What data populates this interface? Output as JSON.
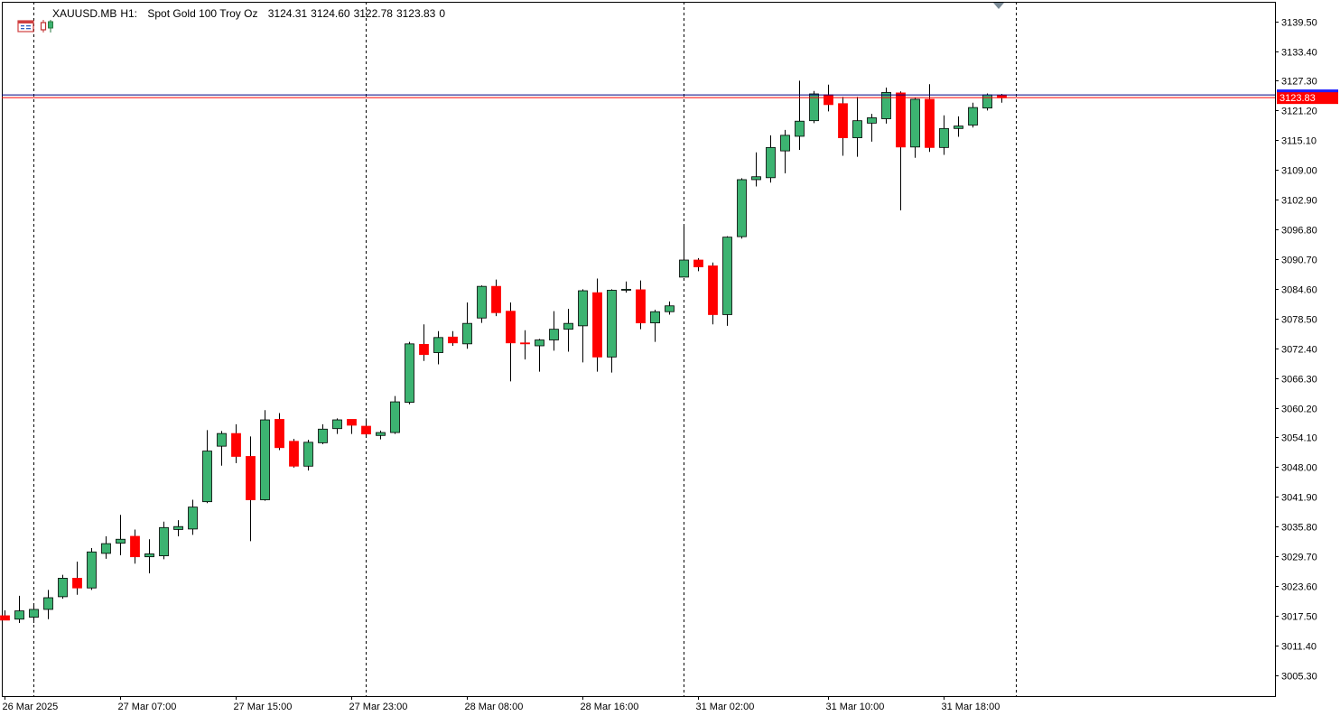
{
  "header": {
    "symbol": "XAUUSD.MB",
    "timeframe": "H1:",
    "description": "Spot Gold 100 Troy Oz",
    "open": "3124.31",
    "high": "3124.60",
    "low": "3122.78",
    "close": "3123.83",
    "volume": "0",
    "icons": [
      "chart-window-icon",
      "candles-icon"
    ]
  },
  "colors": {
    "bull": "#3cb371",
    "bear": "#ff0000",
    "outline": "#000000",
    "bid_line": "#000080",
    "ask_line": "#ff0000",
    "price_label_bg": "#ff0000",
    "price_label_text": "#ffffff",
    "grid_sep": "#000000"
  },
  "chart_data": {
    "type": "candlestick",
    "symbol": "XAUUSD.MB",
    "timeframe": "H1",
    "ylim": [
      3001.0,
      3143.5
    ],
    "y_ticks": [
      "3139.50",
      "3133.40",
      "3127.30",
      "3121.20",
      "3115.10",
      "3109.00",
      "3102.90",
      "3096.80",
      "3090.70",
      "3084.60",
      "3078.50",
      "3072.40",
      "3066.30",
      "3060.20",
      "3054.10",
      "3048.00",
      "3041.90",
      "3035.80",
      "3029.70",
      "3023.60",
      "3017.50",
      "3011.40",
      "3005.30"
    ],
    "x_labels": [
      "26 Mar 2025",
      "27 Mar 07:00",
      "27 Mar 15:00",
      "27 Mar 23:00",
      "28 Mar 08:00",
      "28 Mar 16:00",
      "31 Mar 02:00",
      "31 Mar 10:00",
      "31 Mar 18:00"
    ],
    "x_label_bars": [
      0,
      8,
      16,
      24,
      32,
      40,
      48,
      57,
      65
    ],
    "separator_bars": [
      2,
      25,
      47,
      70
    ],
    "bid": 3123.83,
    "ask": 3124.4,
    "bid_label": "3123.83",
    "last_bar_partial": true,
    "candles": [
      [
        3017.5,
        3018.6,
        3016.6,
        3016.6
      ],
      [
        3016.8,
        3021.6,
        3016.0,
        3018.5
      ],
      [
        3017.2,
        3019.8,
        3016.0,
        3018.8
      ],
      [
        3018.8,
        3022.8,
        3016.8,
        3021.2
      ],
      [
        3021.4,
        3025.9,
        3021.0,
        3025.2
      ],
      [
        3025.2,
        3028.6,
        3021.8,
        3023.2
      ],
      [
        3023.2,
        3031.4,
        3022.8,
        3030.6
      ],
      [
        3030.3,
        3033.8,
        3029.2,
        3032.3
      ],
      [
        3032.4,
        3038.2,
        3029.9,
        3033.2
      ],
      [
        3033.8,
        3035.2,
        3028.2,
        3029.6
      ],
      [
        3029.6,
        3033.2,
        3026.2,
        3030.2
      ],
      [
        3029.8,
        3036.8,
        3029.1,
        3035.6
      ],
      [
        3035.2,
        3037.1,
        3033.8,
        3035.8
      ],
      [
        3035.3,
        3041.3,
        3034.1,
        3039.8
      ],
      [
        3040.9,
        3055.6,
        3040.6,
        3051.3
      ],
      [
        3052.3,
        3055.4,
        3048.3,
        3054.9
      ],
      [
        3054.9,
        3056.8,
        3048.8,
        3050.2
      ],
      [
        3050.2,
        3054.3,
        3032.8,
        3041.3
      ],
      [
        3041.3,
        3059.7,
        3041.1,
        3057.7
      ],
      [
        3057.8,
        3059.1,
        3051.5,
        3052.0
      ],
      [
        3053.3,
        3053.8,
        3047.9,
        3048.2
      ],
      [
        3048.2,
        3053.6,
        3047.3,
        3053.1
      ],
      [
        3053.0,
        3056.8,
        3052.7,
        3055.8
      ],
      [
        3055.9,
        3058.0,
        3054.8,
        3057.7
      ],
      [
        3057.8,
        3057.8,
        3054.8,
        3056.6
      ],
      [
        3056.4,
        3058.0,
        3054.5,
        3054.8
      ],
      [
        3054.5,
        3055.5,
        3053.7,
        3055.1
      ],
      [
        3055.1,
        3062.6,
        3054.8,
        3061.4
      ],
      [
        3061.3,
        3073.7,
        3060.9,
        3073.3
      ],
      [
        3073.2,
        3077.3,
        3069.8,
        3071.1
      ],
      [
        3071.5,
        3075.9,
        3069.1,
        3074.6
      ],
      [
        3074.7,
        3075.9,
        3072.9,
        3073.5
      ],
      [
        3073.3,
        3081.8,
        3072.3,
        3077.5
      ],
      [
        3078.6,
        3085.3,
        3077.6,
        3085.1
      ],
      [
        3085.1,
        3086.5,
        3079.0,
        3079.7
      ],
      [
        3080.0,
        3081.8,
        3065.6,
        3073.5
      ],
      [
        3073.5,
        3076.1,
        3070.1,
        3073.3
      ],
      [
        3072.9,
        3074.3,
        3067.6,
        3074.1
      ],
      [
        3074.1,
        3080.0,
        3071.9,
        3076.3
      ],
      [
        3076.3,
        3080.5,
        3071.7,
        3077.5
      ],
      [
        3077.0,
        3084.5,
        3069.5,
        3084.2
      ],
      [
        3083.8,
        3086.7,
        3067.6,
        3070.6
      ],
      [
        3070.6,
        3084.5,
        3067.4,
        3084.3
      ],
      [
        3084.3,
        3086.1,
        3083.8,
        3084.5
      ],
      [
        3084.4,
        3086.3,
        3076.3,
        3077.6
      ],
      [
        3077.6,
        3080.3,
        3073.7,
        3079.9
      ],
      [
        3079.9,
        3082.0,
        3079.3,
        3081.1
      ],
      [
        3087.0,
        3097.6,
        3087.0,
        3090.5
      ],
      [
        3090.5,
        3090.9,
        3088.2,
        3089.1
      ],
      [
        3089.3,
        3090.0,
        3077.3,
        3079.3
      ],
      [
        3079.3,
        3095.4,
        3077.0,
        3095.2
      ],
      [
        3095.3,
        3107.3,
        3094.9,
        3107.0
      ],
      [
        3107.0,
        3112.6,
        3105.6,
        3107.6
      ],
      [
        3107.4,
        3116.1,
        3106.4,
        3113.6
      ],
      [
        3112.9,
        3117.2,
        3108.3,
        3116.1
      ],
      [
        3115.9,
        3127.3,
        3113.1,
        3119.0
      ],
      [
        3119.1,
        3125.2,
        3118.6,
        3124.6
      ],
      [
        3124.4,
        3126.5,
        3121.0,
        3122.4
      ],
      [
        3122.6,
        3124.0,
        3111.9,
        3115.6
      ],
      [
        3115.6,
        3124.0,
        3111.7,
        3119.1
      ],
      [
        3118.6,
        3120.5,
        3114.8,
        3119.7
      ],
      [
        3119.5,
        3125.9,
        3118.5,
        3124.9
      ],
      [
        3124.8,
        3125.1,
        3100.7,
        3113.7
      ],
      [
        3113.7,
        3123.8,
        3111.5,
        3123.5
      ],
      [
        3123.5,
        3126.6,
        3112.7,
        3113.6
      ],
      [
        3113.6,
        3120.2,
        3112.1,
        3117.5
      ],
      [
        3117.5,
        3120.0,
        3115.8,
        3118.0
      ],
      [
        3118.2,
        3122.8,
        3117.7,
        3121.8
      ],
      [
        3121.7,
        3124.7,
        3121.2,
        3124.4
      ],
      [
        3124.3,
        3124.6,
        3122.8,
        3123.8
      ]
    ]
  }
}
